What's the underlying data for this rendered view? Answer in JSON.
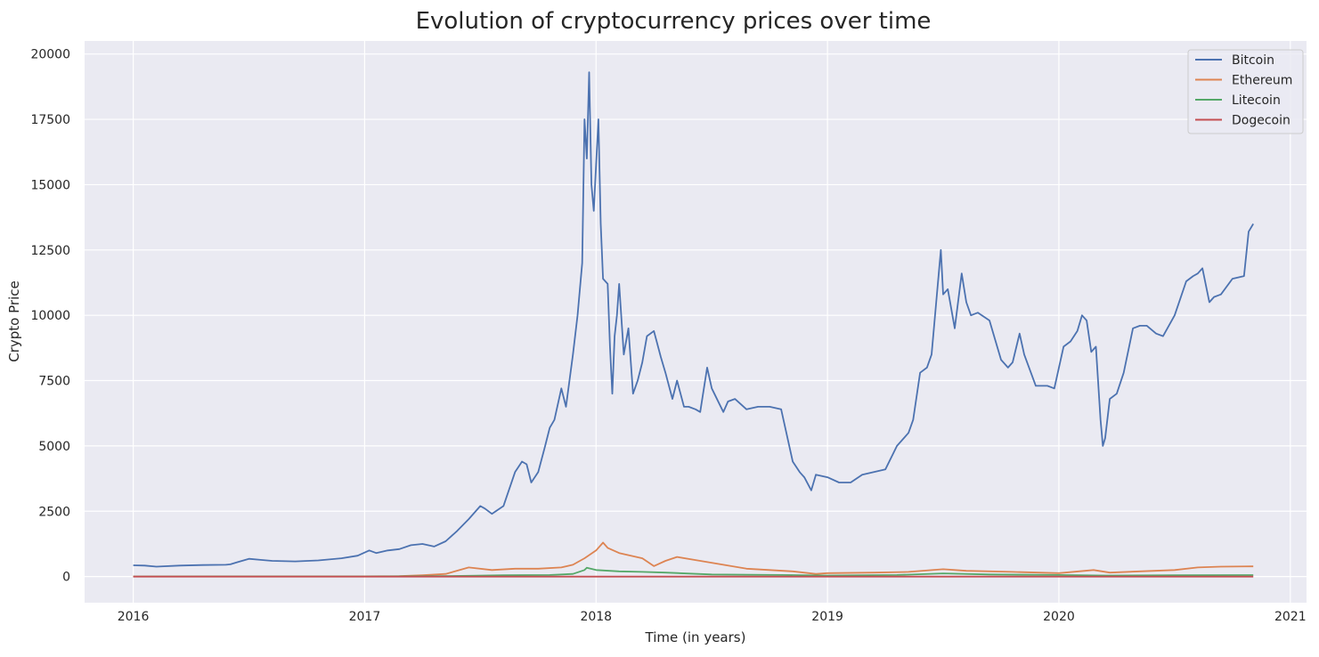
{
  "chart_data": {
    "type": "line",
    "title": "Evolution of cryptocurrency prices over time",
    "xlabel": "Time (in years)",
    "ylabel": "Crypto Price",
    "xlim": [
      2015.79,
      2021.07
    ],
    "ylim": [
      -1000,
      20500
    ],
    "x_ticks": [
      2016,
      2017,
      2018,
      2019,
      2020,
      2021
    ],
    "x_tick_labels": [
      "2016",
      "2017",
      "2018",
      "2019",
      "2020",
      "2021"
    ],
    "y_ticks": [
      0,
      2500,
      5000,
      7500,
      10000,
      12500,
      15000,
      17500,
      20000
    ],
    "y_tick_labels": [
      "0",
      "2500",
      "5000",
      "7500",
      "10000",
      "12500",
      "15000",
      "17500",
      "20000"
    ],
    "grid": true,
    "legend": "top-right",
    "colors": {
      "plot_background": "#EAEAF2",
      "grid": "#FFFFFF",
      "text": "#262626"
    },
    "series": [
      {
        "name": "Bitcoin",
        "color": "#4C72B0",
        "x": [
          2016.0,
          2016.05,
          2016.1,
          2016.2,
          2016.3,
          2016.4,
          2016.42,
          2016.45,
          2016.5,
          2016.55,
          2016.6,
          2016.7,
          2016.8,
          2016.9,
          2016.97,
          2017.02,
          2017.05,
          2017.1,
          2017.15,
          2017.2,
          2017.25,
          2017.3,
          2017.35,
          2017.4,
          2017.45,
          2017.5,
          2017.52,
          2017.55,
          2017.6,
          2017.65,
          2017.68,
          2017.7,
          2017.72,
          2017.75,
          2017.78,
          2017.8,
          2017.82,
          2017.85,
          2017.87,
          2017.9,
          2017.92,
          2017.94,
          2017.95,
          2017.96,
          2017.97,
          2017.98,
          2017.99,
          2018.01,
          2018.02,
          2018.03,
          2018.05,
          2018.06,
          2018.07,
          2018.08,
          2018.09,
          2018.1,
          2018.12,
          2018.14,
          2018.16,
          2018.18,
          2018.2,
          2018.22,
          2018.25,
          2018.28,
          2018.3,
          2018.33,
          2018.35,
          2018.38,
          2018.4,
          2018.43,
          2018.45,
          2018.48,
          2018.5,
          2018.55,
          2018.57,
          2018.6,
          2018.65,
          2018.7,
          2018.75,
          2018.8,
          2018.85,
          2018.88,
          2018.9,
          2018.93,
          2018.95,
          2019.0,
          2019.05,
          2019.1,
          2019.15,
          2019.2,
          2019.25,
          2019.3,
          2019.35,
          2019.37,
          2019.4,
          2019.43,
          2019.45,
          2019.48,
          2019.49,
          2019.5,
          2019.52,
          2019.55,
          2019.58,
          2019.6,
          2019.62,
          2019.65,
          2019.7,
          2019.75,
          2019.78,
          2019.8,
          2019.83,
          2019.85,
          2019.9,
          2019.95,
          2019.98,
          2020.02,
          2020.05,
          2020.08,
          2020.1,
          2020.12,
          2020.14,
          2020.16,
          2020.18,
          2020.19,
          2020.2,
          2020.22,
          2020.25,
          2020.28,
          2020.32,
          2020.35,
          2020.38,
          2020.42,
          2020.45,
          2020.5,
          2020.55,
          2020.58,
          2020.6,
          2020.62,
          2020.65,
          2020.67,
          2020.7,
          2020.75,
          2020.8,
          2020.82,
          2020.84
        ],
        "y": [
          430,
          420,
          380,
          420,
          440,
          450,
          470,
          550,
          680,
          640,
          600,
          580,
          620,
          700,
          800,
          1000,
          900,
          1000,
          1050,
          1200,
          1250,
          1150,
          1350,
          1750,
          2200,
          2700,
          2600,
          2400,
          2700,
          4000,
          4400,
          4300,
          3600,
          4000,
          5000,
          5700,
          6000,
          7200,
          6500,
          8500,
          10000,
          12000,
          17500,
          16000,
          19300,
          15000,
          14000,
          17500,
          13500,
          11400,
          11200,
          8800,
          7000,
          9200,
          10000,
          11200,
          8500,
          9500,
          7000,
          7500,
          8200,
          9200,
          9400,
          8400,
          7800,
          6800,
          7500,
          6500,
          6500,
          6400,
          6300,
          8000,
          7200,
          6300,
          6700,
          6800,
          6400,
          6500,
          6500,
          6400,
          4400,
          4000,
          3800,
          3300,
          3900,
          3800,
          3600,
          3600,
          3900,
          4000,
          4100,
          5000,
          5500,
          6000,
          7800,
          8000,
          8500,
          11500,
          12500,
          10800,
          11000,
          9500,
          11600,
          10500,
          10000,
          10100,
          9800,
          8300,
          8000,
          8200,
          9300,
          8500,
          7300,
          7300,
          7200,
          8800,
          9000,
          9400,
          10000,
          9800,
          8600,
          8800,
          6000,
          5000,
          5300,
          6800,
          7000,
          7800,
          9500,
          9600,
          9600,
          9300,
          9200,
          10000,
          11300,
          11500,
          11600,
          11800,
          10500,
          10700,
          10800,
          11400,
          11500,
          13200,
          13500
        ]
      },
      {
        "name": "Ethereum",
        "color": "#DD8452",
        "x": [
          2016.0,
          2016.5,
          2017.0,
          2017.15,
          2017.25,
          2017.35,
          2017.45,
          2017.55,
          2017.65,
          2017.75,
          2017.85,
          2017.9,
          2017.95,
          2018.0,
          2018.03,
          2018.05,
          2018.1,
          2018.2,
          2018.25,
          2018.3,
          2018.35,
          2018.45,
          2018.55,
          2018.65,
          2018.75,
          2018.85,
          2018.95,
          2019.0,
          2019.2,
          2019.35,
          2019.5,
          2019.6,
          2019.8,
          2020.0,
          2020.15,
          2020.22,
          2020.35,
          2020.5,
          2020.6,
          2020.7,
          2020.84
        ],
        "y": [
          1,
          10,
          8,
          15,
          50,
          100,
          350,
          250,
          300,
          300,
          350,
          450,
          700,
          1000,
          1300,
          1100,
          900,
          700,
          400,
          600,
          750,
          600,
          450,
          300,
          250,
          200,
          100,
          130,
          150,
          180,
          280,
          220,
          180,
          130,
          250,
          150,
          200,
          250,
          350,
          380,
          390
        ]
      },
      {
        "name": "Litecoin",
        "color": "#55A868",
        "x": [
          2016.0,
          2016.5,
          2017.0,
          2017.3,
          2017.45,
          2017.6,
          2017.8,
          2017.9,
          2017.95,
          2017.96,
          2018.0,
          2018.1,
          2018.2,
          2018.3,
          2018.5,
          2018.8,
          2019.0,
          2019.3,
          2019.5,
          2019.7,
          2020.0,
          2020.2,
          2020.5,
          2020.84
        ],
        "y": [
          3,
          4,
          4,
          15,
          30,
          50,
          60,
          100,
          250,
          340,
          250,
          200,
          180,
          150,
          80,
          60,
          40,
          60,
          120,
          80,
          60,
          40,
          50,
          55
        ]
      },
      {
        "name": "Dogecoin",
        "color": "#C44E52",
        "x": [
          2016.0,
          2017.0,
          2017.95,
          2018.0,
          2018.5,
          2019.0,
          2019.5,
          2020.0,
          2020.5,
          2020.84
        ],
        "y": [
          0,
          0,
          0,
          0,
          0,
          0,
          0,
          0,
          0,
          0
        ]
      }
    ]
  }
}
